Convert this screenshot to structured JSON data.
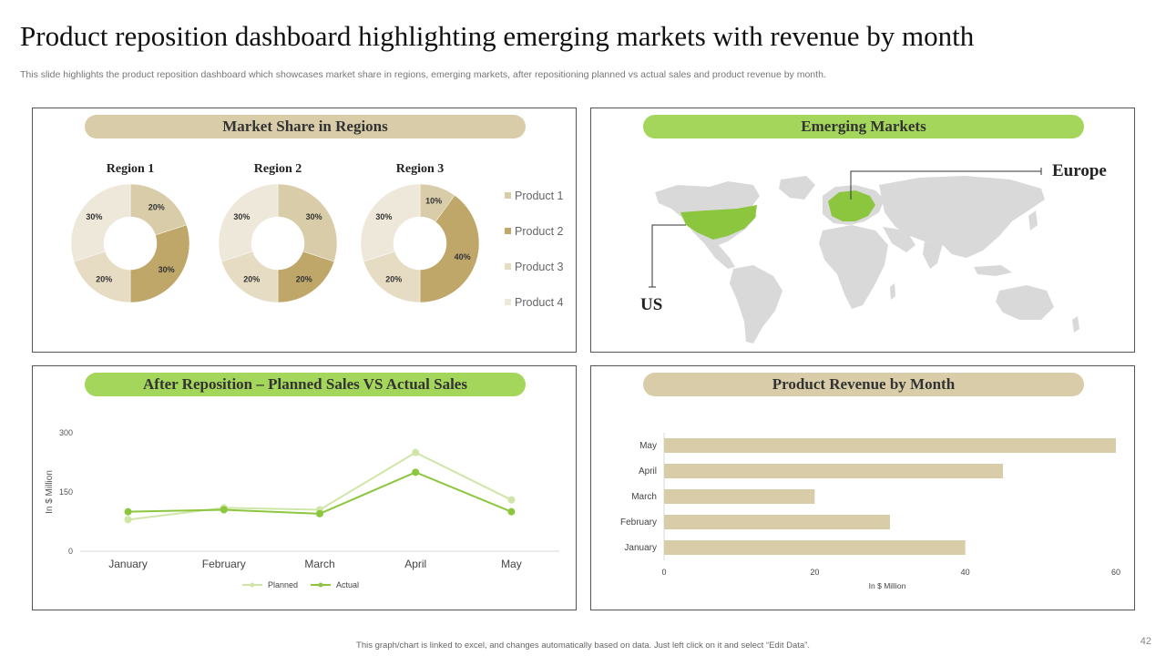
{
  "slide": {
    "title": "Product reposition dashboard highlighting emerging markets with revenue by month",
    "subtitle": "This slide highlights the product reposition dashboard which showcases market share in regions, emerging markets, after repositioning planned vs actual sales and product revenue by month.",
    "footer": "This graph/chart is linked to excel, and changes automatically based on data. Just left click on it and select “Edit Data”.",
    "page_number": "42"
  },
  "panels": {
    "market_share": {
      "title": "Market Share in Regions"
    },
    "emerging": {
      "title": "Emerging Markets",
      "labels": [
        "Europe",
        "US"
      ]
    },
    "sales": {
      "title": "After Reposition – Planned Sales VS Actual Sales"
    },
    "revenue": {
      "title": "Product Revenue by Month"
    }
  },
  "colors": {
    "product_1": "#d9cca8",
    "product_2": "#bfa76a",
    "product_3": "#e6dcc4",
    "product_4": "#eee8da",
    "planned": "#cfe6a8",
    "actual": "#8cc63f",
    "highlight_map": "#8cc63f",
    "map_land": "#d9d9d9",
    "bar": "#d9cca8"
  },
  "chart_data": [
    {
      "type": "pie",
      "variant": "donut",
      "charts": [
        {
          "name": "Region 1",
          "values": [
            20,
            30,
            20,
            30
          ],
          "labels": [
            "20%",
            "30%",
            "20%",
            "30%"
          ]
        },
        {
          "name": "Region 2",
          "values": [
            30,
            20,
            20,
            30
          ],
          "labels": [
            "30%",
            "20%",
            "20%",
            "30%"
          ]
        },
        {
          "name": "Region 3",
          "values": [
            10,
            40,
            20,
            30
          ],
          "labels": [
            "10%",
            "40%",
            "20%",
            "30%"
          ]
        }
      ],
      "legend": [
        "Product 1",
        "Product 2",
        "Product 3",
        "Product 4"
      ],
      "legend_position": "right"
    },
    {
      "type": "line",
      "title": "After Reposition – Planned Sales VS Actual Sales",
      "categories": [
        "January",
        "February",
        "March",
        "April",
        "May"
      ],
      "series": [
        {
          "name": "Planned",
          "values": [
            80,
            110,
            105,
            250,
            130
          ]
        },
        {
          "name": "Actual",
          "values": [
            100,
            105,
            95,
            200,
            100
          ]
        }
      ],
      "ylabel": "In $ Million",
      "yticks": [
        "0",
        "150",
        "300"
      ],
      "ylim": [
        0,
        300
      ],
      "legend_position": "bottom"
    },
    {
      "type": "bar",
      "orientation": "horizontal",
      "title": "Product Revenue by Month",
      "categories": [
        "May",
        "April",
        "March",
        "February",
        "January"
      ],
      "values": [
        60,
        45,
        20,
        30,
        40
      ],
      "xlabel": "In $ Million",
      "xticks": [
        "0",
        "20",
        "40",
        "60"
      ],
      "xlim": [
        0,
        60
      ]
    }
  ]
}
